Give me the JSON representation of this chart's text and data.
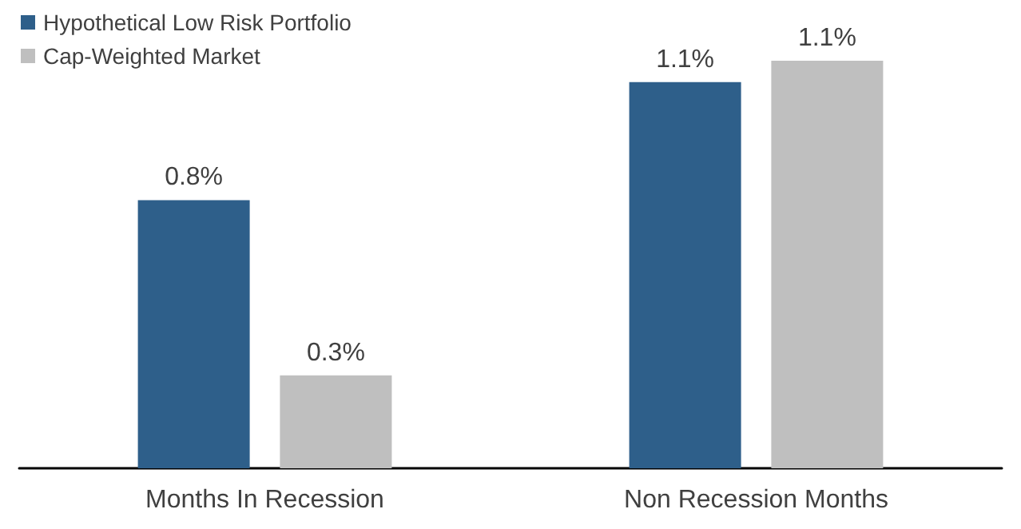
{
  "chart_data": {
    "type": "bar",
    "categories": [
      "Months In Recession",
      "Non Recession Months"
    ],
    "series": [
      {
        "name": "Hypothetical Low Risk Portfolio",
        "color": "#2e5f8a",
        "values": [
          0.75,
          1.08
        ],
        "value_labels": [
          "0.8%",
          "1.1%"
        ]
      },
      {
        "name": "Cap-Weighted Market",
        "color": "#bfbfbf",
        "values": [
          0.26,
          1.14
        ],
        "value_labels": [
          "0.3%",
          "1.1%"
        ]
      }
    ],
    "legend": "top left"
  }
}
